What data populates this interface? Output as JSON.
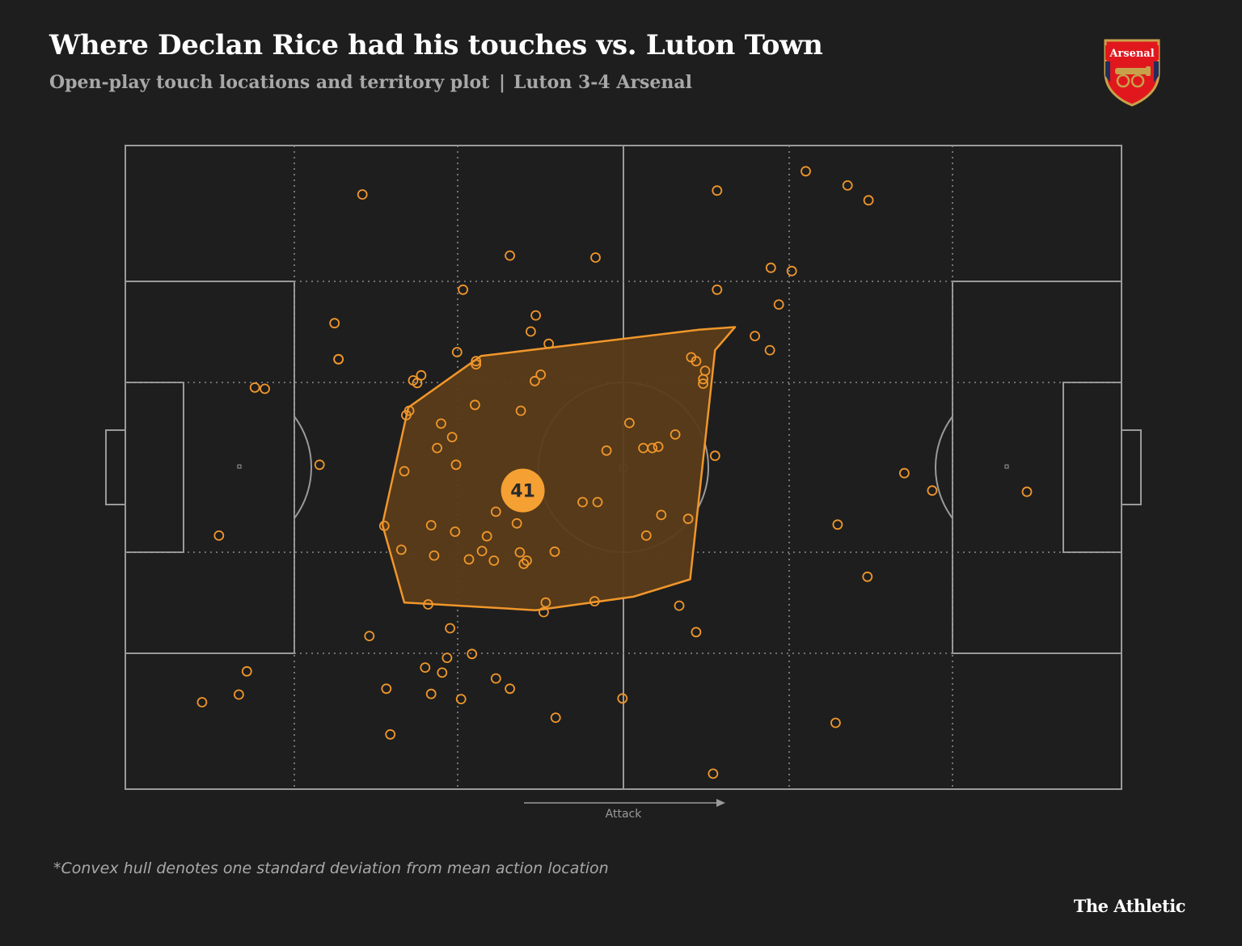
{
  "header": {
    "title": "Where Declan Rice had his touches vs. Luton Town",
    "subtitle_left": "Open-play touch locations and territory plot",
    "subtitle_sep": "|",
    "subtitle_right": "Luton 3-4 Arsenal"
  },
  "crest": {
    "label": "Arsenal",
    "colors": {
      "red": "#e1171e",
      "gold": "#c8a24a",
      "navy": "#1f2d5c"
    }
  },
  "footer": {
    "footnote": "*Convex hull denotes one standard deviation from mean action location",
    "brand": "The Athletic"
  },
  "colors": {
    "background": "#1e1e1e",
    "pitch_lines": "#9a9a9a",
    "zone_lines": "#8a8a8a",
    "touch": "#f0962b",
    "hull_fill": "#5a3c19",
    "hull_stroke": "#f0962b",
    "badge": "#f5a033",
    "badge_text": "#2a2a2a"
  },
  "chart_data": {
    "type": "scatter",
    "title": "Where Declan Rice had his touches vs. Luton Town",
    "direction_label": "Attack",
    "xlim": [
      0,
      100
    ],
    "ylim": [
      0,
      100
    ],
    "touch_count": "41",
    "average_position": {
      "x": 39.9,
      "y": 46.4
    },
    "touches": [
      [
        23.8,
        92.4
      ],
      [
        38.6,
        82.9
      ],
      [
        47.2,
        82.6
      ],
      [
        33.9,
        77.6
      ],
      [
        21.0,
        72.4
      ],
      [
        21.4,
        66.8
      ],
      [
        21.4,
        66.8
      ],
      [
        33.3,
        67.9
      ],
      [
        40.7,
        71.1
      ],
      [
        41.2,
        73.6
      ],
      [
        35.2,
        66.5
      ],
      [
        35.2,
        66.0
      ],
      [
        42.5,
        69.2
      ],
      [
        29.7,
        64.3
      ],
      [
        28.9,
        63.5
      ],
      [
        29.3,
        63.1
      ],
      [
        41.1,
        63.4
      ],
      [
        41.7,
        64.4
      ],
      [
        56.8,
        67.1
      ],
      [
        57.3,
        66.5
      ],
      [
        58.2,
        65.0
      ],
      [
        58.0,
        63.7
      ],
      [
        58.0,
        63.0
      ],
      [
        63.2,
        70.4
      ],
      [
        64.7,
        68.2
      ],
      [
        68.3,
        96.0
      ],
      [
        72.5,
        93.8
      ],
      [
        74.6,
        91.5
      ],
      [
        59.4,
        93.0
      ],
      [
        64.8,
        81.0
      ],
      [
        66.9,
        80.5
      ],
      [
        59.4,
        77.6
      ],
      [
        65.6,
        75.3
      ],
      [
        13.0,
        62.4
      ],
      [
        14.0,
        62.2
      ],
      [
        28.5,
        58.8
      ],
      [
        35.1,
        59.7
      ],
      [
        39.7,
        58.8
      ],
      [
        28.2,
        58.1
      ],
      [
        31.7,
        56.8
      ],
      [
        32.8,
        54.7
      ],
      [
        31.3,
        53.0
      ],
      [
        33.2,
        50.4
      ],
      [
        50.6,
        56.9
      ],
      [
        55.2,
        55.1
      ],
      [
        53.5,
        53.2
      ],
      [
        52.0,
        53.0
      ],
      [
        52.9,
        53.0
      ],
      [
        59.2,
        51.8
      ],
      [
        48.3,
        52.6
      ],
      [
        19.5,
        50.4
      ],
      [
        78.2,
        49.1
      ],
      [
        28.0,
        49.4
      ],
      [
        81.0,
        46.4
      ],
      [
        90.5,
        46.2
      ],
      [
        45.9,
        44.6
      ],
      [
        47.4,
        44.6
      ],
      [
        37.2,
        43.1
      ],
      [
        53.8,
        42.6
      ],
      [
        56.5,
        42.0
      ],
      [
        39.3,
        41.3
      ],
      [
        30.7,
        41.0
      ],
      [
        26.0,
        40.9
      ],
      [
        33.1,
        40.0
      ],
      [
        36.3,
        39.3
      ],
      [
        52.3,
        39.4
      ],
      [
        71.5,
        41.1
      ],
      [
        9.4,
        39.4
      ],
      [
        35.8,
        37.0
      ],
      [
        39.6,
        36.8
      ],
      [
        43.1,
        36.9
      ],
      [
        27.7,
        37.2
      ],
      [
        31.0,
        36.3
      ],
      [
        34.5,
        35.7
      ],
      [
        37.0,
        35.5
      ],
      [
        40.0,
        35.0
      ],
      [
        40.3,
        35.5
      ],
      [
        74.5,
        33.0
      ],
      [
        42.2,
        29.0
      ],
      [
        47.1,
        29.2
      ],
      [
        55.6,
        28.5
      ],
      [
        42.0,
        27.5
      ],
      [
        30.4,
        28.7
      ],
      [
        32.6,
        25.0
      ],
      [
        24.5,
        23.8
      ],
      [
        57.3,
        24.4
      ],
      [
        34.8,
        21.0
      ],
      [
        32.3,
        20.4
      ],
      [
        31.8,
        18.1
      ],
      [
        30.1,
        18.9
      ],
      [
        37.2,
        17.2
      ],
      [
        12.2,
        18.3
      ],
      [
        38.6,
        15.6
      ],
      [
        26.2,
        15.6
      ],
      [
        11.4,
        14.7
      ],
      [
        30.7,
        14.8
      ],
      [
        33.7,
        14.0
      ],
      [
        49.9,
        14.1
      ],
      [
        7.7,
        13.5
      ],
      [
        43.2,
        11.1
      ],
      [
        71.3,
        10.3
      ],
      [
        26.6,
        8.5
      ],
      [
        59.0,
        2.4
      ]
    ],
    "hull": [
      [
        61.2,
        71.8
      ],
      [
        57.6,
        71.4
      ],
      [
        35.7,
        67.3
      ],
      [
        28.4,
        59.3
      ],
      [
        25.8,
        41.1
      ],
      [
        28.0,
        29.0
      ],
      [
        41.2,
        27.8
      ],
      [
        51.0,
        29.9
      ],
      [
        56.7,
        32.6
      ],
      [
        59.2,
        68.2
      ]
    ]
  }
}
